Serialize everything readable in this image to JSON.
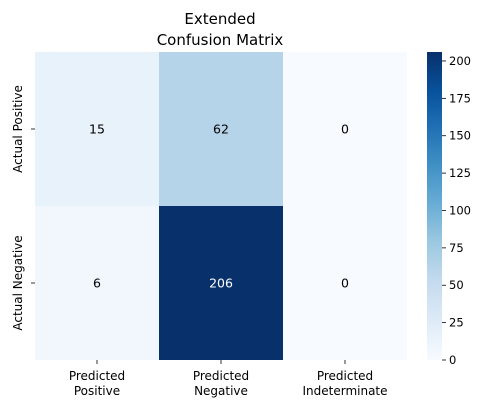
{
  "chart_data": {
    "type": "heatmap",
    "title_lines": [
      "Extended",
      "Confusion Matrix"
    ],
    "row_labels": [
      "Actual Positive",
      "Actual Negative"
    ],
    "col_labels": [
      [
        "Predicted",
        "Positive"
      ],
      [
        "Predicted",
        "Negative"
      ],
      [
        "Predicted",
        "Indeterminate"
      ]
    ],
    "values": [
      [
        15,
        62,
        0
      ],
      [
        6,
        206,
        0
      ]
    ],
    "colormap": "Blues",
    "colorbar": {
      "min": 0,
      "max": 206,
      "ticks": [
        0,
        25,
        50,
        75,
        100,
        125,
        150,
        175,
        200
      ]
    },
    "annotation_colors": {
      "light": "#000000",
      "dark": "#ffffff"
    }
  }
}
